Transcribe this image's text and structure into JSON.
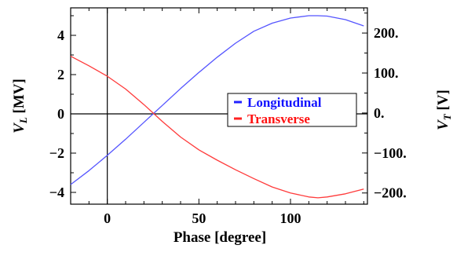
{
  "chart_data": {
    "type": "line",
    "xlabel": "Phase [degree]",
    "ylabel_left": "V_L [MV]",
    "ylabel_right": "V_T [V]",
    "xlim": [
      -20,
      142
    ],
    "ylim_left": [
      -4.6,
      5.4
    ],
    "ylim_right": [
      -228,
      263
    ],
    "x_ticks": [
      0,
      50,
      100
    ],
    "x_tick_labels": [
      "0",
      "50",
      "100"
    ],
    "y_left_ticks": [
      -4,
      -2,
      0,
      2,
      4
    ],
    "y_left_tick_labels": [
      "−4",
      "−2",
      "0",
      "2",
      "4"
    ],
    "y_right_ticks": [
      -200,
      -100,
      0,
      100,
      200
    ],
    "y_right_tick_labels": [
      "−200.",
      "−100.",
      "0.",
      "100.",
      "200."
    ],
    "legend": {
      "position": "right-center"
    },
    "series": [
      {
        "name": "Longitudinal",
        "axis": "left",
        "color": "#5555ff",
        "x": [
          -20,
          -10,
          0,
          10,
          20,
          25,
          30,
          40,
          50,
          60,
          70,
          80,
          90,
          100,
          110,
          115,
          120,
          130,
          140
        ],
        "y": [
          -3.6,
          -2.89,
          -2.11,
          -1.29,
          -0.43,
          0.0,
          0.43,
          1.29,
          2.11,
          2.89,
          3.6,
          4.21,
          4.62,
          4.88,
          5.0,
          5.0,
          4.98,
          4.8,
          4.48
        ]
      },
      {
        "name": "Transverse",
        "axis": "right",
        "color": "#ff3b3b",
        "x": [
          -20,
          -10,
          0,
          10,
          20,
          25,
          30,
          40,
          50,
          60,
          70,
          80,
          90,
          100,
          110,
          115,
          120,
          130,
          140
        ],
        "y": [
          142,
          118,
          92,
          60,
          21,
          0,
          -21,
          -60,
          -92,
          -118,
          -142,
          -164,
          -185,
          -200,
          -210,
          -212,
          -210,
          -202,
          -190
        ]
      }
    ]
  }
}
